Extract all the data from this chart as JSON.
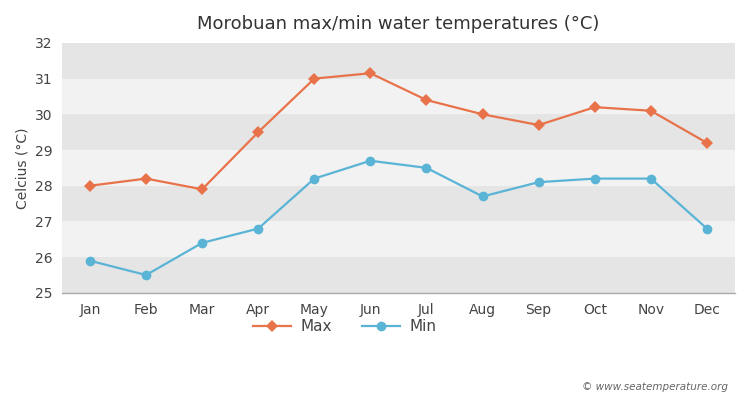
{
  "title": "Morobuan max/min water temperatures (°C)",
  "ylabel": "Celcius (°C)",
  "months": [
    "Jan",
    "Feb",
    "Mar",
    "Apr",
    "May",
    "Jun",
    "Jul",
    "Aug",
    "Sep",
    "Oct",
    "Nov",
    "Dec"
  ],
  "max_temps": [
    28.0,
    28.2,
    27.9,
    29.5,
    31.0,
    31.15,
    30.4,
    30.0,
    29.7,
    30.2,
    30.1,
    29.2
  ],
  "min_temps": [
    25.9,
    25.5,
    26.4,
    26.8,
    28.2,
    28.7,
    28.5,
    27.7,
    28.1,
    28.2,
    28.2,
    26.8
  ],
  "max_color": "#e8734a",
  "min_color": "#5ab4d6",
  "fig_bg_color": "#ffffff",
  "band_light": "#f2f2f2",
  "band_dark": "#e5e5e5",
  "ylim": [
    25,
    32
  ],
  "yticks": [
    25,
    26,
    27,
    28,
    29,
    30,
    31,
    32
  ],
  "watermark": "© www.seatemperature.org",
  "legend_labels": [
    "Max",
    "Min"
  ]
}
